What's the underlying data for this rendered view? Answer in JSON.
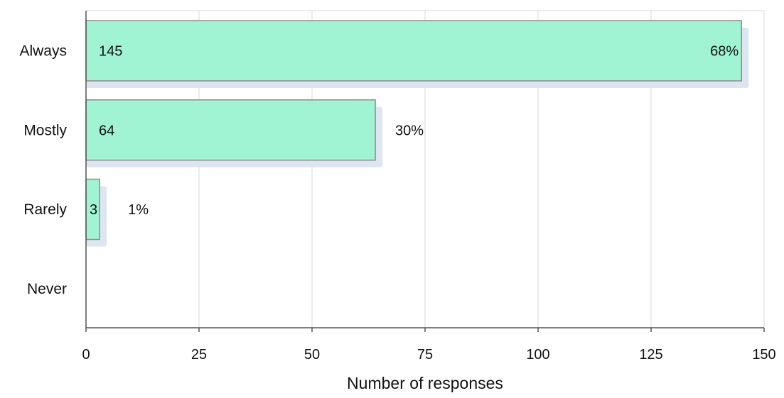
{
  "chart_data": {
    "type": "bar",
    "orientation": "horizontal",
    "categories": [
      "Always",
      "Mostly",
      "Rarely",
      "Never"
    ],
    "values": [
      145,
      64,
      3,
      0
    ],
    "percent_labels": [
      "68%",
      "30%",
      "1%",
      ""
    ],
    "count_labels": [
      "145",
      "64",
      "3",
      ""
    ],
    "xlabel": "Number of responses",
    "xlim": [
      0,
      150
    ],
    "xticks": [
      0,
      25,
      50,
      75,
      100,
      125,
      150
    ],
    "xtick_labels": [
      "0",
      "25",
      "50",
      "75",
      "100",
      "125",
      "150"
    ],
    "grid": "vertical",
    "legend": "none",
    "colors": {
      "bar_fill": "#a1f4d3",
      "bar_stroke": "#8c8c8c",
      "bar_shadow": "#dde5f1",
      "grid": "#d9d9d9",
      "axis": "#555555"
    }
  }
}
